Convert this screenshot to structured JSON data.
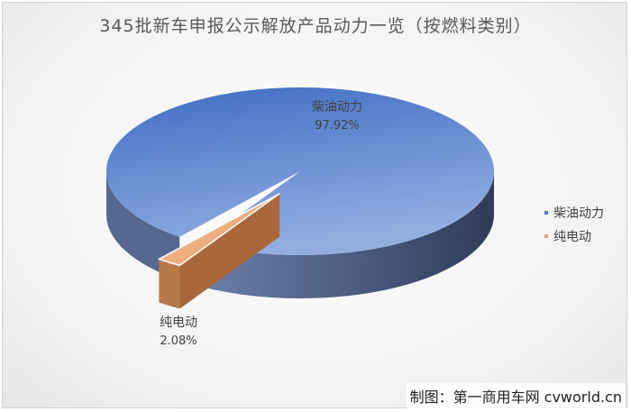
{
  "chart_data": {
    "type": "pie",
    "title": "345批新车申报公示解放产品动力一览（按燃料类别）",
    "categories": [
      "柴油动力",
      "纯电动"
    ],
    "values": [
      97.92,
      2.08
    ],
    "labels": [
      "97.92%",
      "2.08%"
    ],
    "colors": [
      "#4f78c0",
      "#e8a070"
    ],
    "legend": {
      "position": "right"
    }
  },
  "credit": "制图：第一商用车网 cvworld.cn"
}
